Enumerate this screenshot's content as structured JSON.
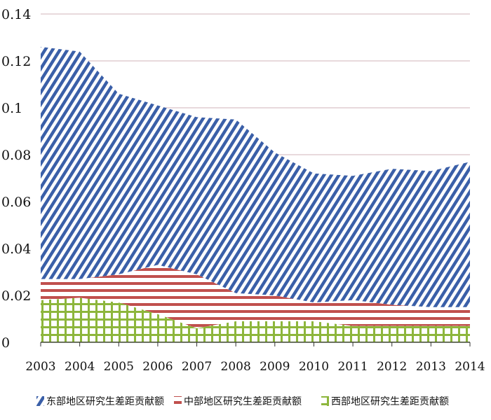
{
  "chart_data": {
    "type": "area",
    "stacked": true,
    "title": "",
    "xlabel": "",
    "ylabel": "",
    "x": [
      2003,
      2004,
      2005,
      2006,
      2007,
      2008,
      2009,
      2010,
      2011,
      2012,
      2013,
      2014
    ],
    "x_tick_labels": [
      "2003",
      "2004",
      "2005",
      "2006",
      "2007",
      "2008",
      "2009",
      "2010",
      "2011",
      "2012",
      "2013",
      "2014"
    ],
    "ylim": [
      0,
      0.14
    ],
    "y_ticks": [
      0,
      0.02,
      0.04,
      0.06,
      0.08,
      0.1,
      0.12,
      0.14
    ],
    "y_tick_labels": [
      "0",
      "0.02",
      "0.04",
      "0.06",
      "0.08",
      "0.1",
      "0.12",
      "0.14"
    ],
    "grid": true,
    "legend_position": "bottom",
    "series": [
      {
        "name": "西部地区研究生差距贡献额",
        "color": "#8db63c",
        "pattern": "grid",
        "values": [
          0.018,
          0.019,
          0.017,
          0.012,
          0.006,
          0.009,
          0.009,
          0.009,
          0.007,
          0.007,
          0.007,
          0.007
        ]
      },
      {
        "name": "中部地区研究生差距贡献额",
        "color": "#c0504d",
        "pattern": "horizontal",
        "values": [
          0.009,
          0.008,
          0.012,
          0.021,
          0.023,
          0.012,
          0.011,
          0.008,
          0.011,
          0.009,
          0.008,
          0.008
        ]
      },
      {
        "name": "东部地区研究生差距贡献额",
        "color": "#3a5fa8",
        "pattern": "diagonal",
        "values": [
          0.099,
          0.097,
          0.077,
          0.068,
          0.067,
          0.074,
          0.061,
          0.055,
          0.053,
          0.058,
          0.058,
          0.062
        ]
      }
    ]
  }
}
